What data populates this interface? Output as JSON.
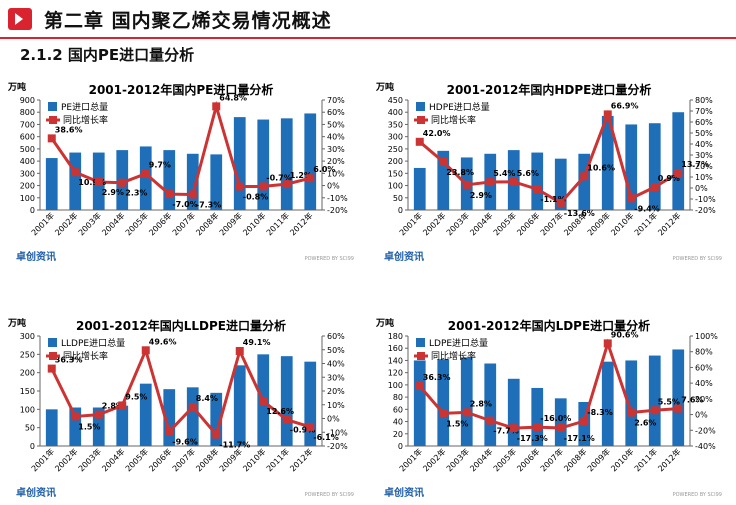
{
  "header": {
    "title": "第二章  国内聚乙烯交易情况概述"
  },
  "section": {
    "title": "2.1.2 国内PE进口量分析"
  },
  "watermark": {
    "logo": "卓创资讯",
    "powered": "POWERED BY SCI99"
  },
  "colors": {
    "bar": "#1f6fb8",
    "line": "#cc3333",
    "accent": "#d9232f"
  },
  "chart_data": [
    {
      "type": "bar",
      "title": "2001-2012年国内PE进口量分析",
      "unit": "万吨",
      "categories": [
        "2001年",
        "2002年",
        "2003年",
        "2004年",
        "2005年",
        "2006年",
        "2007年",
        "2008年",
        "2009年",
        "2010年",
        "2011年",
        "2012年"
      ],
      "series": [
        {
          "name": "PE进口总量",
          "type": "bar",
          "axis": "left",
          "values": [
            425,
            470,
            470,
            490,
            520,
            490,
            460,
            455,
            760,
            740,
            750,
            790
          ]
        },
        {
          "name": "同比增长率",
          "type": "line",
          "axis": "right",
          "values": [
            38.6,
            10.9,
            2.9,
            2.3,
            9.7,
            -7.0,
            -7.3,
            64.8,
            -0.8,
            -0.7,
            1.2,
            6.0
          ],
          "labels": [
            "38.6%",
            "10.9%",
            "2.9%",
            "2.3%",
            "9.7%",
            "-7.0%",
            "-7.3%",
            "64.8%",
            "-0.8%",
            "-0.7%",
            "1.2%",
            "6.0%"
          ]
        }
      ],
      "y_left": {
        "min": 0,
        "max": 900,
        "ticks": [
          "0",
          "100",
          "200",
          "300",
          "400",
          "500",
          "600",
          "700",
          "800",
          "900"
        ]
      },
      "y_right": {
        "min": -20,
        "max": 70,
        "ticks": [
          "-20%",
          "-10%",
          "0%",
          "10%",
          "20%",
          "30%",
          "40%",
          "50%",
          "60%",
          "70%"
        ]
      },
      "legend": "top-left"
    },
    {
      "type": "bar",
      "title": "2001-2012年国内HDPE进口量分析",
      "unit": "万吨",
      "categories": [
        "2001年",
        "2002年",
        "2003年",
        "2004年",
        "2005年",
        "2006年",
        "2007年",
        "2008年",
        "2009年",
        "2010年",
        "2011年",
        "2012年"
      ],
      "series": [
        {
          "name": "HDPE进口总量",
          "type": "bar",
          "axis": "left",
          "values": [
            172,
            242,
            215,
            230,
            245,
            235,
            210,
            230,
            385,
            350,
            355,
            400
          ]
        },
        {
          "name": "同比增长率",
          "type": "line",
          "axis": "right",
          "values": [
            42.0,
            23.8,
            2.9,
            5.4,
            5.6,
            -1.1,
            -13.6,
            10.6,
            66.9,
            -9.4,
            0.9,
            13.7
          ],
          "labels": [
            "42.0%",
            "23.8%",
            "2.9%",
            "5.4%",
            "5.6%",
            "-1.1%",
            "-13.6%",
            "10.6%",
            "66.9%",
            "-9.4%",
            "0.9%",
            "13.7%"
          ]
        }
      ],
      "y_left": {
        "min": 0,
        "max": 450,
        "ticks": [
          "0",
          "50",
          "100",
          "150",
          "200",
          "250",
          "300",
          "350",
          "400",
          "450"
        ]
      },
      "y_right": {
        "min": -20,
        "max": 80,
        "ticks": [
          "-20%",
          "-10%",
          "0%",
          "10%",
          "20%",
          "30%",
          "40%",
          "50%",
          "60%",
          "70%",
          "80%"
        ]
      },
      "legend": "top-left"
    },
    {
      "type": "bar",
      "title": "2001-2012年国内LLDPE进口量分析",
      "unit": "万吨",
      "categories": [
        "2001年",
        "2002年",
        "2003年",
        "2004年",
        "2005年",
        "2006年",
        "2007年",
        "2008年",
        "2009年",
        "2010年",
        "2011年",
        "2012年"
      ],
      "series": [
        {
          "name": "LLDPE进口总量",
          "type": "bar",
          "axis": "left",
          "values": [
            100,
            105,
            105,
            110,
            170,
            155,
            160,
            145,
            220,
            250,
            245,
            230
          ]
        },
        {
          "name": "同比增长率",
          "type": "line",
          "axis": "right",
          "values": [
            36.3,
            1.5,
            2.8,
            9.5,
            49.6,
            -9.6,
            8.4,
            -11.7,
            49.1,
            12.6,
            -0.9,
            -6.1
          ],
          "labels": [
            "36.3%",
            "1.5%",
            "2.8%",
            "9.5%",
            "49.6%",
            "-9.6%",
            "8.4%",
            "-11.7%",
            "49.1%",
            "12.6%",
            "-0.9%",
            "-6.1%"
          ]
        }
      ],
      "y_left": {
        "min": 0,
        "max": 300,
        "ticks": [
          "0",
          "50",
          "100",
          "150",
          "200",
          "250",
          "300"
        ]
      },
      "y_right": {
        "min": -20,
        "max": 60,
        "ticks": [
          "-20%",
          "-10%",
          "0%",
          "10%",
          "20%",
          "30%",
          "40%",
          "50%",
          "60%"
        ]
      },
      "legend": "top-left"
    },
    {
      "type": "bar",
      "title": "2001-2012年国内LDPE进口量分析",
      "unit": "万吨",
      "categories": [
        "2001年",
        "2002年",
        "2003年",
        "2004年",
        "2005年",
        "2006年",
        "2007年",
        "2008年",
        "2009年",
        "2010年",
        "2011年",
        "2012年"
      ],
      "series": [
        {
          "name": "LDPE进口总量",
          "type": "bar",
          "axis": "left",
          "values": [
            140,
            142,
            145,
            135,
            110,
            95,
            78,
            72,
            138,
            140,
            148,
            158
          ]
        },
        {
          "name": "同比增长率",
          "type": "line",
          "axis": "right",
          "values": [
            36.3,
            1.5,
            2.8,
            -7.7,
            -17.3,
            -16.0,
            -17.1,
            -8.3,
            90.6,
            2.6,
            5.5,
            7.6
          ],
          "labels": [
            "36.3%",
            "1.5%",
            "2.8%",
            "-7.7%",
            "-17.3%",
            "-16.0%",
            "-17.1%",
            "-8.3%",
            "90.6%",
            "2.6%",
            "5.5%",
            "7.6%"
          ]
        }
      ],
      "y_left": {
        "min": 0,
        "max": 180,
        "ticks": [
          "0",
          "20",
          "40",
          "60",
          "80",
          "100",
          "120",
          "140",
          "160",
          "180"
        ]
      },
      "y_right": {
        "min": -40,
        "max": 100,
        "ticks": [
          "-40%",
          "-20%",
          "0%",
          "20%",
          "40%",
          "60%",
          "80%",
          "100%"
        ]
      },
      "legend": "top-left"
    }
  ]
}
